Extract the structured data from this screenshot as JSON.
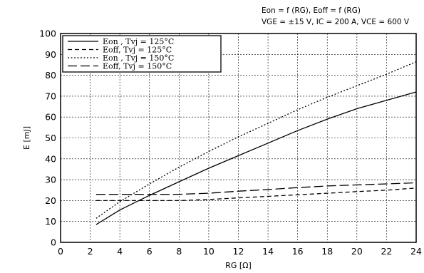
{
  "chart_data": {
    "type": "line",
    "title": "",
    "subtitle_lines": [
      "Eon = f (RG), Eoff = f (RG)",
      "VGE = ±15 V, IC = 200 A, VCE = 600 V"
    ],
    "xlabel": "RG [Ω]",
    "ylabel": "E [mJ]",
    "xlim": [
      0,
      24
    ],
    "ylim": [
      0,
      100
    ],
    "x_ticks": [
      0,
      2,
      4,
      6,
      8,
      10,
      12,
      14,
      16,
      18,
      20,
      22,
      24
    ],
    "y_ticks": [
      0,
      10,
      20,
      30,
      40,
      50,
      60,
      70,
      80,
      90,
      100
    ],
    "grid": true,
    "legend_position": "top-left",
    "series": [
      {
        "name": "Eon , Tvj = 125°C",
        "style": "solid",
        "x": [
          2.4,
          4,
          6,
          8,
          10,
          12,
          14,
          16,
          18,
          20,
          22,
          24
        ],
        "y": [
          8.5,
          15.5,
          22.5,
          29,
          35.5,
          41.5,
          47.5,
          53.5,
          59,
          64,
          68,
          72
        ]
      },
      {
        "name": "Eoff, Tvj = 125°C",
        "style": "short-dash",
        "x": [
          2.4,
          4,
          6,
          8,
          10,
          12,
          14,
          16,
          18,
          20,
          22,
          24
        ],
        "y": [
          20,
          20,
          20,
          20,
          20.5,
          21.3,
          22,
          22.8,
          23.5,
          24.3,
          25,
          26
        ]
      },
      {
        "name": "Eon , Tvj = 150°C",
        "style": "dotted",
        "x": [
          2.4,
          4,
          6,
          8,
          10,
          12,
          14,
          16,
          18,
          20,
          22,
          24
        ],
        "y": [
          11.5,
          19.5,
          28,
          36,
          43.5,
          50.5,
          57,
          63.5,
          69.5,
          75,
          80.5,
          86.5
        ]
      },
      {
        "name": "Eoff, Tvj = 150°C",
        "style": "long-dash",
        "x": [
          2.4,
          4,
          6,
          8,
          10,
          12,
          14,
          16,
          18,
          20,
          22,
          24
        ],
        "y": [
          23,
          23,
          23,
          23,
          23.5,
          24.5,
          25.3,
          26.2,
          27,
          27.5,
          28,
          28.5
        ]
      }
    ]
  }
}
